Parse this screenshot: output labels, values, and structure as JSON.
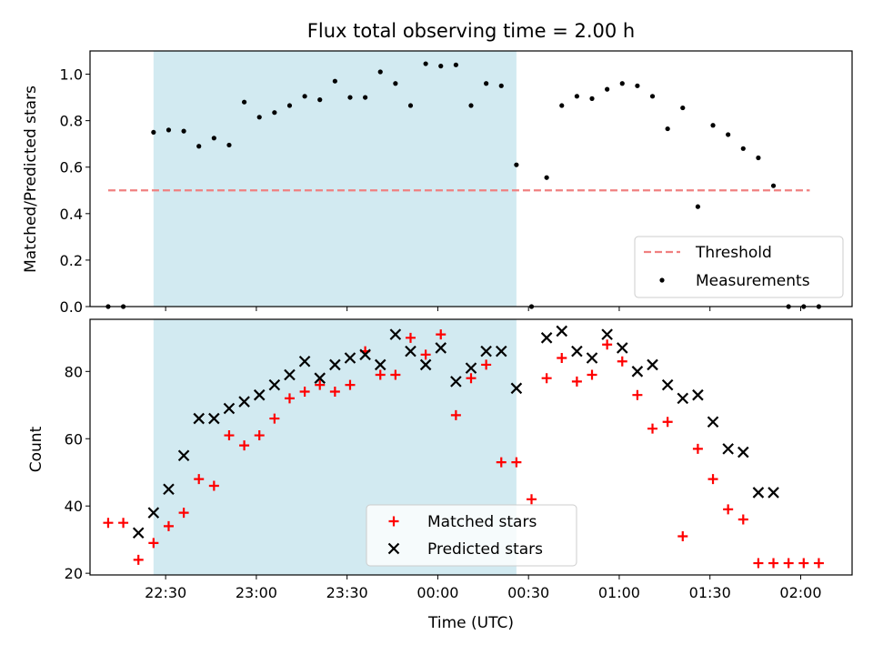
{
  "chart_data": [
    {
      "type": "scatter",
      "title": "Flux total observing time = 2.00 h",
      "xlabel": "",
      "ylabel": "Matched/Predicted stars",
      "xlim": [
        "22:05",
        "02:17"
      ],
      "ylim": [
        0,
        1.1
      ],
      "yticks": [
        0.0,
        0.2,
        0.4,
        0.6,
        0.8,
        1.0
      ],
      "ytick_labels": [
        "0.0",
        "0.2",
        "0.4",
        "0.6",
        "0.8",
        "1.0"
      ],
      "xticks": [
        "22:30",
        "23:00",
        "23:30",
        "00:00",
        "00:30",
        "01:00",
        "01:30",
        "02:00"
      ],
      "shaded_interval": {
        "start": "22:26",
        "end": "00:26",
        "color": "#add8e6"
      },
      "legend_position": "lower right",
      "threshold": {
        "name": "Threshold",
        "value": 0.5,
        "x_start": "22:11",
        "x_end": "02:03",
        "color": "#f08080",
        "style": "dashed"
      },
      "series": [
        {
          "name": "Measurements",
          "color": "#000000",
          "marker": "dot",
          "x": [
            "22:11",
            "22:16",
            "22:26",
            "22:31",
            "22:36",
            "22:41",
            "22:46",
            "22:51",
            "22:56",
            "23:01",
            "23:06",
            "23:11",
            "23:16",
            "23:21",
            "23:26",
            "23:31",
            "23:36",
            "23:41",
            "23:46",
            "23:51",
            "23:56",
            "00:01",
            "00:06",
            "00:11",
            "00:16",
            "00:21",
            "00:26",
            "00:31",
            "00:36",
            "00:41",
            "00:46",
            "00:51",
            "00:56",
            "01:01",
            "01:06",
            "01:11",
            "01:16",
            "01:21",
            "01:26",
            "01:31",
            "01:36",
            "01:41",
            "01:46",
            "01:51",
            "01:56",
            "02:01",
            "02:06"
          ],
          "y": [
            0.0,
            0.0,
            0.75,
            0.76,
            0.755,
            0.69,
            0.725,
            0.695,
            0.88,
            0.815,
            0.835,
            0.865,
            0.905,
            0.89,
            0.97,
            0.9,
            0.9,
            1.01,
            0.96,
            0.865,
            1.045,
            1.035,
            1.04,
            0.865,
            0.96,
            0.95,
            0.61,
            0.0,
            0.555,
            0.865,
            0.905,
            0.895,
            0.935,
            0.96,
            0.95,
            0.905,
            0.765,
            0.855,
            0.43,
            0.78,
            0.74,
            0.68,
            0.64,
            0.52,
            0.0,
            0.0,
            0.0
          ]
        }
      ]
    },
    {
      "type": "scatter",
      "title": "",
      "xlabel": "Time (UTC)",
      "ylabel": "Count",
      "xlim": [
        "22:05",
        "02:17"
      ],
      "ylim": [
        19.5,
        95.5
      ],
      "yticks": [
        20,
        40,
        60,
        80
      ],
      "ytick_labels": [
        "20",
        "40",
        "60",
        "80"
      ],
      "xticks": [
        "22:30",
        "23:00",
        "23:30",
        "00:00",
        "00:30",
        "01:00",
        "01:30",
        "02:00"
      ],
      "xtick_labels": [
        "22:30",
        "23:00",
        "23:30",
        "00:00",
        "00:30",
        "01:00",
        "01:30",
        "02:00"
      ],
      "shaded_interval": {
        "start": "22:26",
        "end": "00:26",
        "color": "#add8e6"
      },
      "legend_position": "lower center",
      "series": [
        {
          "name": "Matched stars",
          "color": "#ff0000",
          "marker": "plus",
          "x": [
            "22:11",
            "22:16",
            "22:21",
            "22:26",
            "22:31",
            "22:36",
            "22:41",
            "22:46",
            "22:51",
            "22:56",
            "23:01",
            "23:06",
            "23:11",
            "23:16",
            "23:21",
            "23:26",
            "23:31",
            "23:36",
            "23:41",
            "23:46",
            "23:51",
            "23:56",
            "00:01",
            "00:06",
            "00:11",
            "00:16",
            "00:21",
            "00:26",
            "00:31",
            "00:36",
            "00:41",
            "00:46",
            "00:51",
            "00:56",
            "01:01",
            "01:06",
            "01:11",
            "01:16",
            "01:21",
            "01:26",
            "01:31",
            "01:36",
            "01:41",
            "01:46",
            "01:51",
            "01:56",
            "02:01",
            "02:06"
          ],
          "y": [
            35,
            35,
            24,
            29,
            34,
            38,
            48,
            46,
            61,
            58,
            61,
            66,
            72,
            74,
            76,
            74,
            76,
            86,
            79,
            79,
            90,
            85,
            91,
            67,
            78,
            82,
            53,
            53,
            42,
            78,
            84,
            77,
            79,
            88,
            83,
            73,
            63,
            65,
            31,
            57,
            48,
            39,
            36,
            23,
            23,
            23,
            23,
            23
          ]
        },
        {
          "name": "Predicted stars",
          "color": "#000000",
          "marker": "x",
          "x": [
            "22:21",
            "22:26",
            "22:31",
            "22:36",
            "22:41",
            "22:46",
            "22:51",
            "22:56",
            "23:01",
            "23:06",
            "23:11",
            "23:16",
            "23:21",
            "23:26",
            "23:31",
            "23:36",
            "23:41",
            "23:46",
            "23:51",
            "23:56",
            "00:01",
            "00:06",
            "00:11",
            "00:16",
            "00:21",
            "00:26",
            "00:36",
            "00:41",
            "00:46",
            "00:51",
            "00:56",
            "01:01",
            "01:06",
            "01:11",
            "01:16",
            "01:21",
            "01:26",
            "01:31",
            "01:36",
            "01:41",
            "01:46",
            "01:51"
          ],
          "y": [
            32,
            38,
            45,
            55,
            66,
            66,
            69,
            71,
            73,
            76,
            79,
            83,
            78,
            82,
            84,
            85,
            82,
            91,
            86,
            82,
            87,
            77,
            81,
            86,
            86,
            75,
            90,
            92,
            86,
            84,
            91,
            87,
            80,
            82,
            76,
            72,
            73,
            65,
            57,
            56,
            44,
            44
          ]
        }
      ]
    }
  ]
}
